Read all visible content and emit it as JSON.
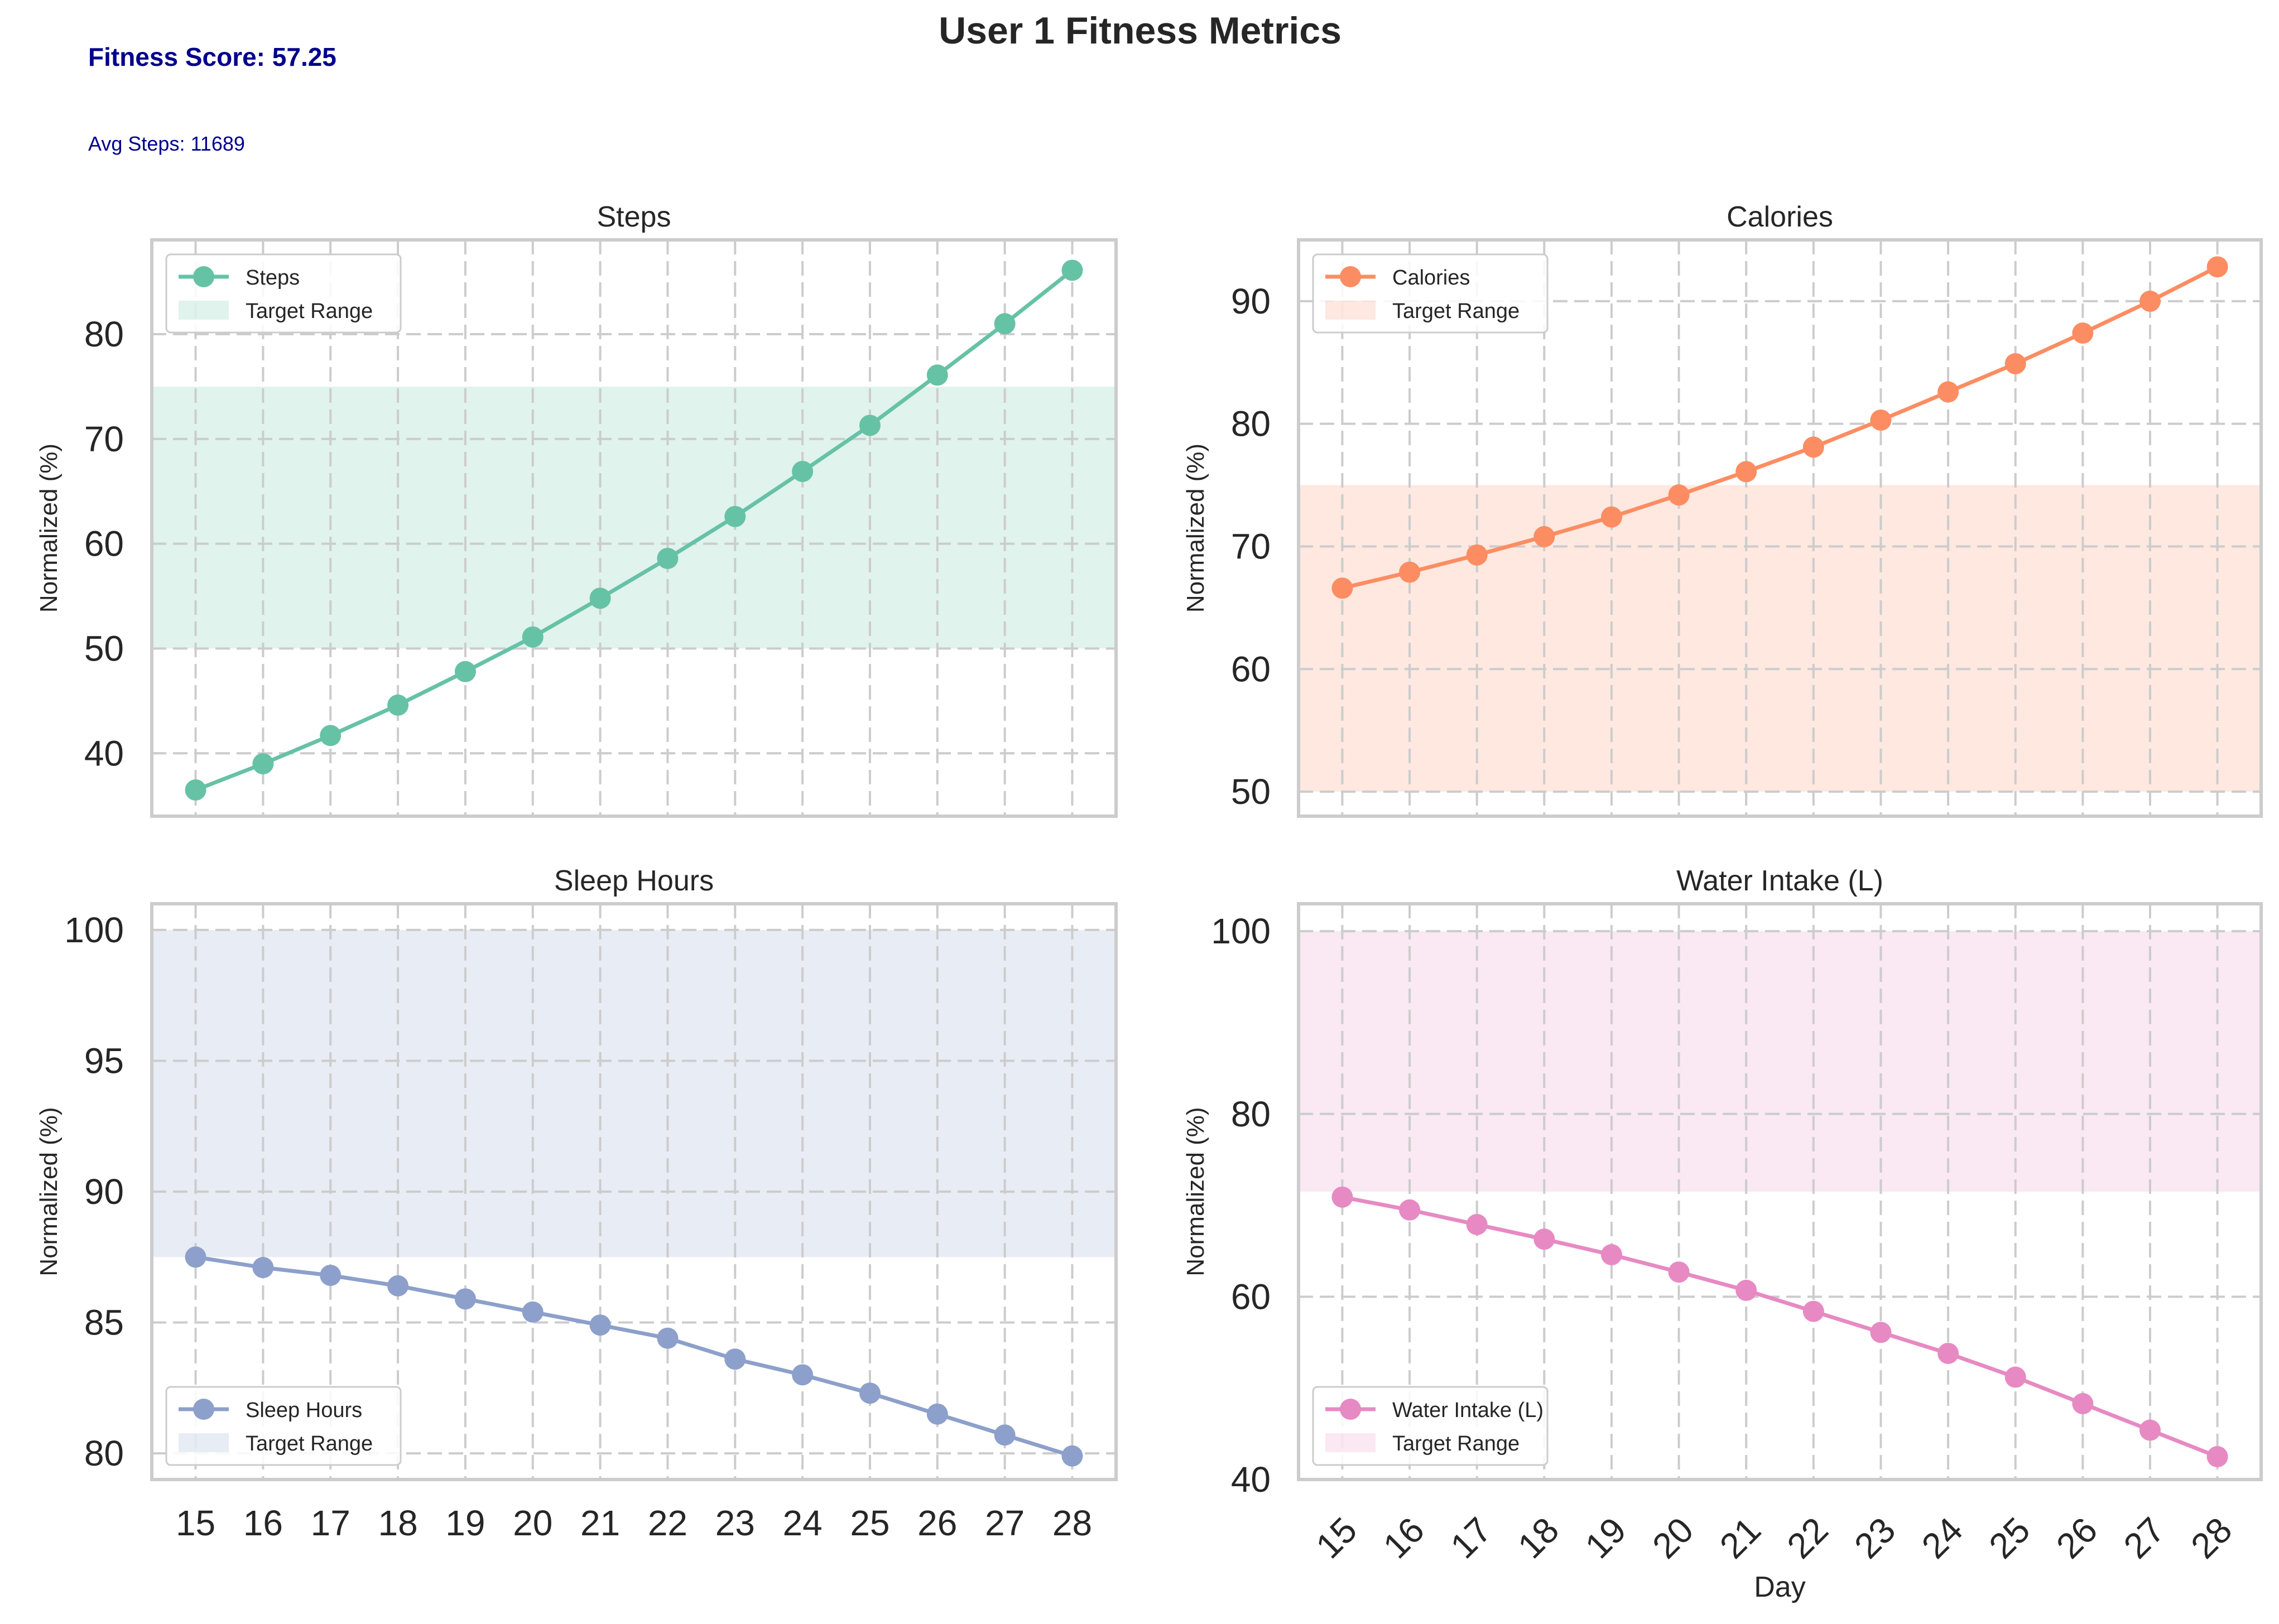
{
  "figure": {
    "title": "User 1 Fitness Metrics",
    "fitness_score": "Fitness Score: 57.25",
    "avg_steps": "Avg Steps: 11689",
    "info_color": "#00008b"
  },
  "chart_data": [
    {
      "type": "line",
      "title": "Steps",
      "xlabel": "",
      "ylabel": "Normalized (%)",
      "x": [
        15,
        16,
        17,
        18,
        19,
        20,
        21,
        22,
        23,
        24,
        25,
        26,
        27,
        28
      ],
      "ylim": [
        34,
        89
      ],
      "yticks": [
        40,
        50,
        60,
        70,
        80
      ],
      "grid": true,
      "legend_position": "upper-left",
      "target_range": [
        50,
        75
      ],
      "series": [
        {
          "name": "Steps",
          "color": "#66c2a5",
          "values": [
            36.5,
            39.0,
            41.7,
            44.6,
            47.8,
            51.1,
            54.8,
            58.6,
            62.6,
            66.9,
            71.3,
            76.1,
            81.0,
            86.1
          ]
        }
      ],
      "legend": [
        "Steps",
        "Target Range"
      ]
    },
    {
      "type": "line",
      "title": "Calories",
      "xlabel": "",
      "ylabel": "Normalized (%)",
      "x": [
        15,
        16,
        17,
        18,
        19,
        20,
        21,
        22,
        23,
        24,
        25,
        26,
        27,
        28
      ],
      "ylim": [
        48,
        95
      ],
      "yticks": [
        50,
        60,
        70,
        80,
        90
      ],
      "grid": true,
      "legend_position": "upper-left",
      "target_range": [
        50,
        75
      ],
      "series": [
        {
          "name": "Calories",
          "color": "#fc8d62",
          "values": [
            66.6,
            67.9,
            69.3,
            70.8,
            72.4,
            74.2,
            76.1,
            78.1,
            80.3,
            82.6,
            84.9,
            87.4,
            90.0,
            92.8
          ]
        }
      ],
      "legend": [
        "Calories",
        "Target Range"
      ]
    },
    {
      "type": "line",
      "title": "Sleep Hours",
      "xlabel": "",
      "ylabel": "Normalized (%)",
      "x": [
        15,
        16,
        17,
        18,
        19,
        20,
        21,
        22,
        23,
        24,
        25,
        26,
        27,
        28
      ],
      "ylim": [
        79,
        101
      ],
      "yticks": [
        80,
        85,
        90,
        95,
        100
      ],
      "grid": true,
      "legend_position": "lower-left",
      "target_range": [
        87.5,
        100
      ],
      "series": [
        {
          "name": "Sleep Hours",
          "color": "#8da0cb",
          "values": [
            87.5,
            87.1,
            86.8,
            86.4,
            85.9,
            85.4,
            84.9,
            84.4,
            83.6,
            83.0,
            82.3,
            81.5,
            80.7,
            79.9
          ]
        }
      ],
      "legend": [
        "Sleep Hours",
        "Target Range"
      ]
    },
    {
      "type": "line",
      "title": "Water Intake (L)",
      "xlabel": "Day",
      "ylabel": "Normalized (%)",
      "x": [
        15,
        16,
        17,
        18,
        19,
        20,
        21,
        22,
        23,
        24,
        25,
        26,
        27,
        28
      ],
      "ylim": [
        40,
        103
      ],
      "yticks": [
        40,
        60,
        80,
        100
      ],
      "grid": true,
      "legend_position": "lower-left",
      "target_range": [
        71.5,
        100
      ],
      "series": [
        {
          "name": "Water Intake (L)",
          "color": "#e78ac3",
          "values": [
            70.9,
            69.5,
            67.9,
            66.3,
            64.6,
            62.7,
            60.7,
            58.4,
            56.1,
            53.8,
            51.2,
            48.3,
            45.4,
            42.5
          ]
        }
      ],
      "legend": [
        "Water Intake (L)",
        "Target Range"
      ]
    }
  ]
}
